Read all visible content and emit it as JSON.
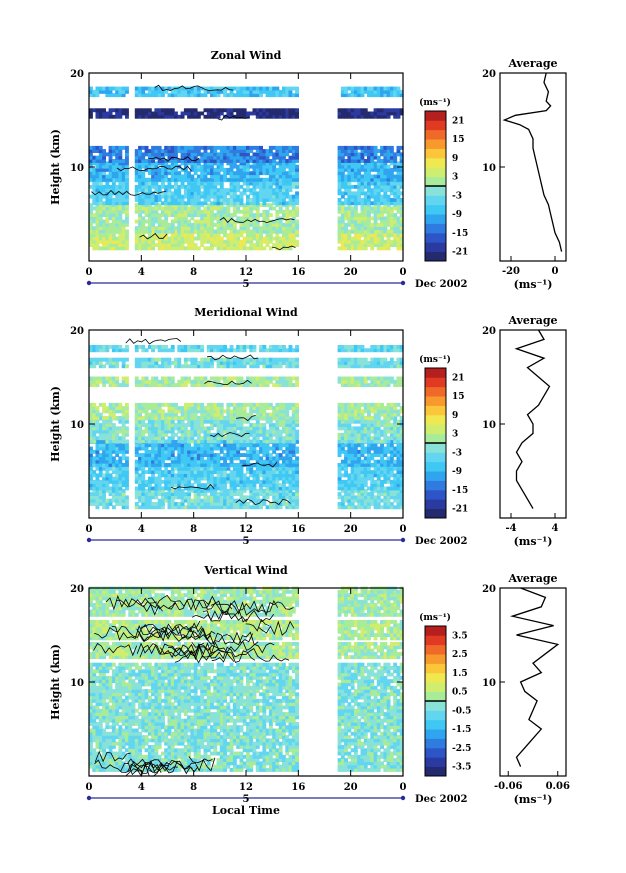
{
  "chart_data": [
    {
      "type": "heatmap",
      "title": "Zonal Wind",
      "ylabel": "Height (km)",
      "ylim": [
        0,
        20
      ],
      "yticks": [
        "10",
        "20"
      ],
      "xticks": [
        "0",
        "4",
        "8",
        "12",
        "16",
        "20",
        "0"
      ],
      "day_marker": "5",
      "date_label": "Dec 2002",
      "colorbar": {
        "unit": "(ms⁻¹)",
        "ticks": [
          "21",
          "15",
          "9",
          "3",
          "-3",
          "-9",
          "-15",
          "-21"
        ],
        "range": [
          -24,
          24
        ]
      },
      "field": {
        "gaps_hours": [
          [
            3.0,
            3.4
          ],
          [
            15.9,
            19.0
          ]
        ],
        "layers": [
          {
            "from_km": 1.2,
            "to_km": 3.0,
            "value": 4
          },
          {
            "from_km": 3.0,
            "to_km": 6.0,
            "value": 1
          },
          {
            "from_km": 6.0,
            "to_km": 8.5,
            "value": -6
          },
          {
            "from_km": 8.5,
            "to_km": 10.5,
            "value": -9
          },
          {
            "from_km": 10.5,
            "to_km": 12.0,
            "value": -13
          },
          {
            "from_km": 15.2,
            "to_km": 15.9,
            "value": -22
          },
          {
            "from_km": 17.5,
            "to_km": 18.5,
            "value": -7
          }
        ]
      },
      "average": {
        "title": "Average",
        "xlabel": "(ms⁻¹)",
        "xticks": [
          "-20",
          "0"
        ],
        "xlim": [
          -25,
          5
        ],
        "ylim": [
          0,
          20
        ],
        "yticks": [
          "10",
          "20"
        ],
        "height_km": [
          1,
          2,
          3,
          4,
          5,
          6,
          7,
          8,
          9,
          10,
          11,
          12,
          13,
          14,
          14.5,
          15,
          15.5,
          16,
          16.5,
          17,
          18,
          19,
          20
        ],
        "wind": [
          3,
          2,
          0,
          -1,
          -2,
          -3,
          -5,
          -6,
          -7,
          -8,
          -9,
          -10,
          -10,
          -12,
          -16,
          -23,
          -18,
          -4,
          -2,
          -4,
          -3,
          -5,
          -4
        ]
      }
    },
    {
      "type": "heatmap",
      "title": "Meridional Wind",
      "ylabel": "Height (km)",
      "ylim": [
        0,
        20
      ],
      "yticks": [
        "10",
        "20"
      ],
      "xticks": [
        "0",
        "4",
        "8",
        "12",
        "16",
        "20",
        "0"
      ],
      "day_marker": "5",
      "date_label": "Dec 2002",
      "colorbar": {
        "unit": "(ms⁻¹)",
        "ticks": [
          "21",
          "15",
          "9",
          "3",
          "-3",
          "-9",
          "-15",
          "-21"
        ],
        "range": [
          -24,
          24
        ]
      },
      "field": {
        "gaps_hours": [
          [
            3.0,
            3.4
          ],
          [
            15.9,
            19.0
          ]
        ],
        "layers": [
          {
            "from_km": 1.0,
            "to_km": 3.0,
            "value": -3
          },
          {
            "from_km": 3.0,
            "to_km": 5.5,
            "value": -6
          },
          {
            "from_km": 5.5,
            "to_km": 8.0,
            "value": -9
          },
          {
            "from_km": 8.0,
            "to_km": 10.5,
            "value": -2
          },
          {
            "from_km": 10.5,
            "to_km": 12.0,
            "value": 1
          },
          {
            "from_km": 14.0,
            "to_km": 15.0,
            "value": 1
          },
          {
            "from_km": 16.0,
            "to_km": 17.0,
            "value": -3
          },
          {
            "from_km": 17.7,
            "to_km": 18.2,
            "value": -4
          }
        ]
      },
      "average": {
        "title": "Average",
        "xlabel": "(ms⁻¹)",
        "xticks": [
          "-4",
          "4"
        ],
        "xlim": [
          -6,
          6
        ],
        "ylim": [
          0,
          20
        ],
        "yticks": [
          "10",
          "20"
        ],
        "height_km": [
          1,
          2,
          3,
          4,
          5,
          6,
          7,
          8,
          9,
          10,
          11,
          12,
          13,
          14,
          15,
          16,
          17,
          18,
          19,
          20
        ],
        "wind": [
          0,
          -1,
          -2,
          -3,
          -3,
          -2,
          -3,
          -2,
          0,
          0,
          -1,
          1,
          2,
          3,
          1,
          -1,
          2,
          -3,
          2,
          1
        ]
      }
    },
    {
      "type": "heatmap",
      "title": "Vertical Wind",
      "ylabel": "Height (km)",
      "xlabel": "Local Time",
      "ylim": [
        0,
        20
      ],
      "yticks": [
        "10",
        "20"
      ],
      "xticks": [
        "0",
        "4",
        "8",
        "12",
        "16",
        "20",
        "0"
      ],
      "day_marker": "5",
      "date_label": "Dec 2002",
      "colorbar": {
        "unit": "(ms⁻¹)",
        "ticks": [
          "3.5",
          "2.5",
          "1.5",
          "0.5",
          "-0.5",
          "-1.5",
          "-2.5",
          "-3.5"
        ],
        "range": [
          -4,
          4
        ]
      },
      "field": {
        "gaps_hours": [
          [
            15.9,
            19.0
          ]
        ],
        "layers": [
          {
            "from_km": 0.5,
            "to_km": 12.0,
            "value": -0.3
          },
          {
            "from_km": 12.5,
            "to_km": 14.0,
            "value": 0.2
          },
          {
            "from_km": 14.5,
            "to_km": 16.5,
            "value": 0.3
          },
          {
            "from_km": 17.0,
            "to_km": 20.0,
            "value": 0.1
          }
        ]
      },
      "average": {
        "title": "Average",
        "xlabel": "(ms⁻¹)",
        "xticks": [
          "-0.06",
          "0.06"
        ],
        "xlim": [
          -0.08,
          0.08
        ],
        "ylim": [
          0,
          20
        ],
        "yticks": [
          "10",
          "20"
        ],
        "height_km": [
          1,
          2,
          3,
          4,
          5,
          6,
          7,
          8,
          9,
          10,
          11,
          12,
          13,
          14,
          15,
          16,
          17,
          18,
          19,
          20
        ],
        "wind": [
          -0.03,
          -0.04,
          -0.02,
          0,
          0.02,
          -0.01,
          0,
          0.01,
          -0.02,
          -0.03,
          0.02,
          0,
          0.03,
          0.06,
          -0.04,
          0.05,
          -0.05,
          0.02,
          0.03,
          -0.03
        ]
      }
    }
  ]
}
